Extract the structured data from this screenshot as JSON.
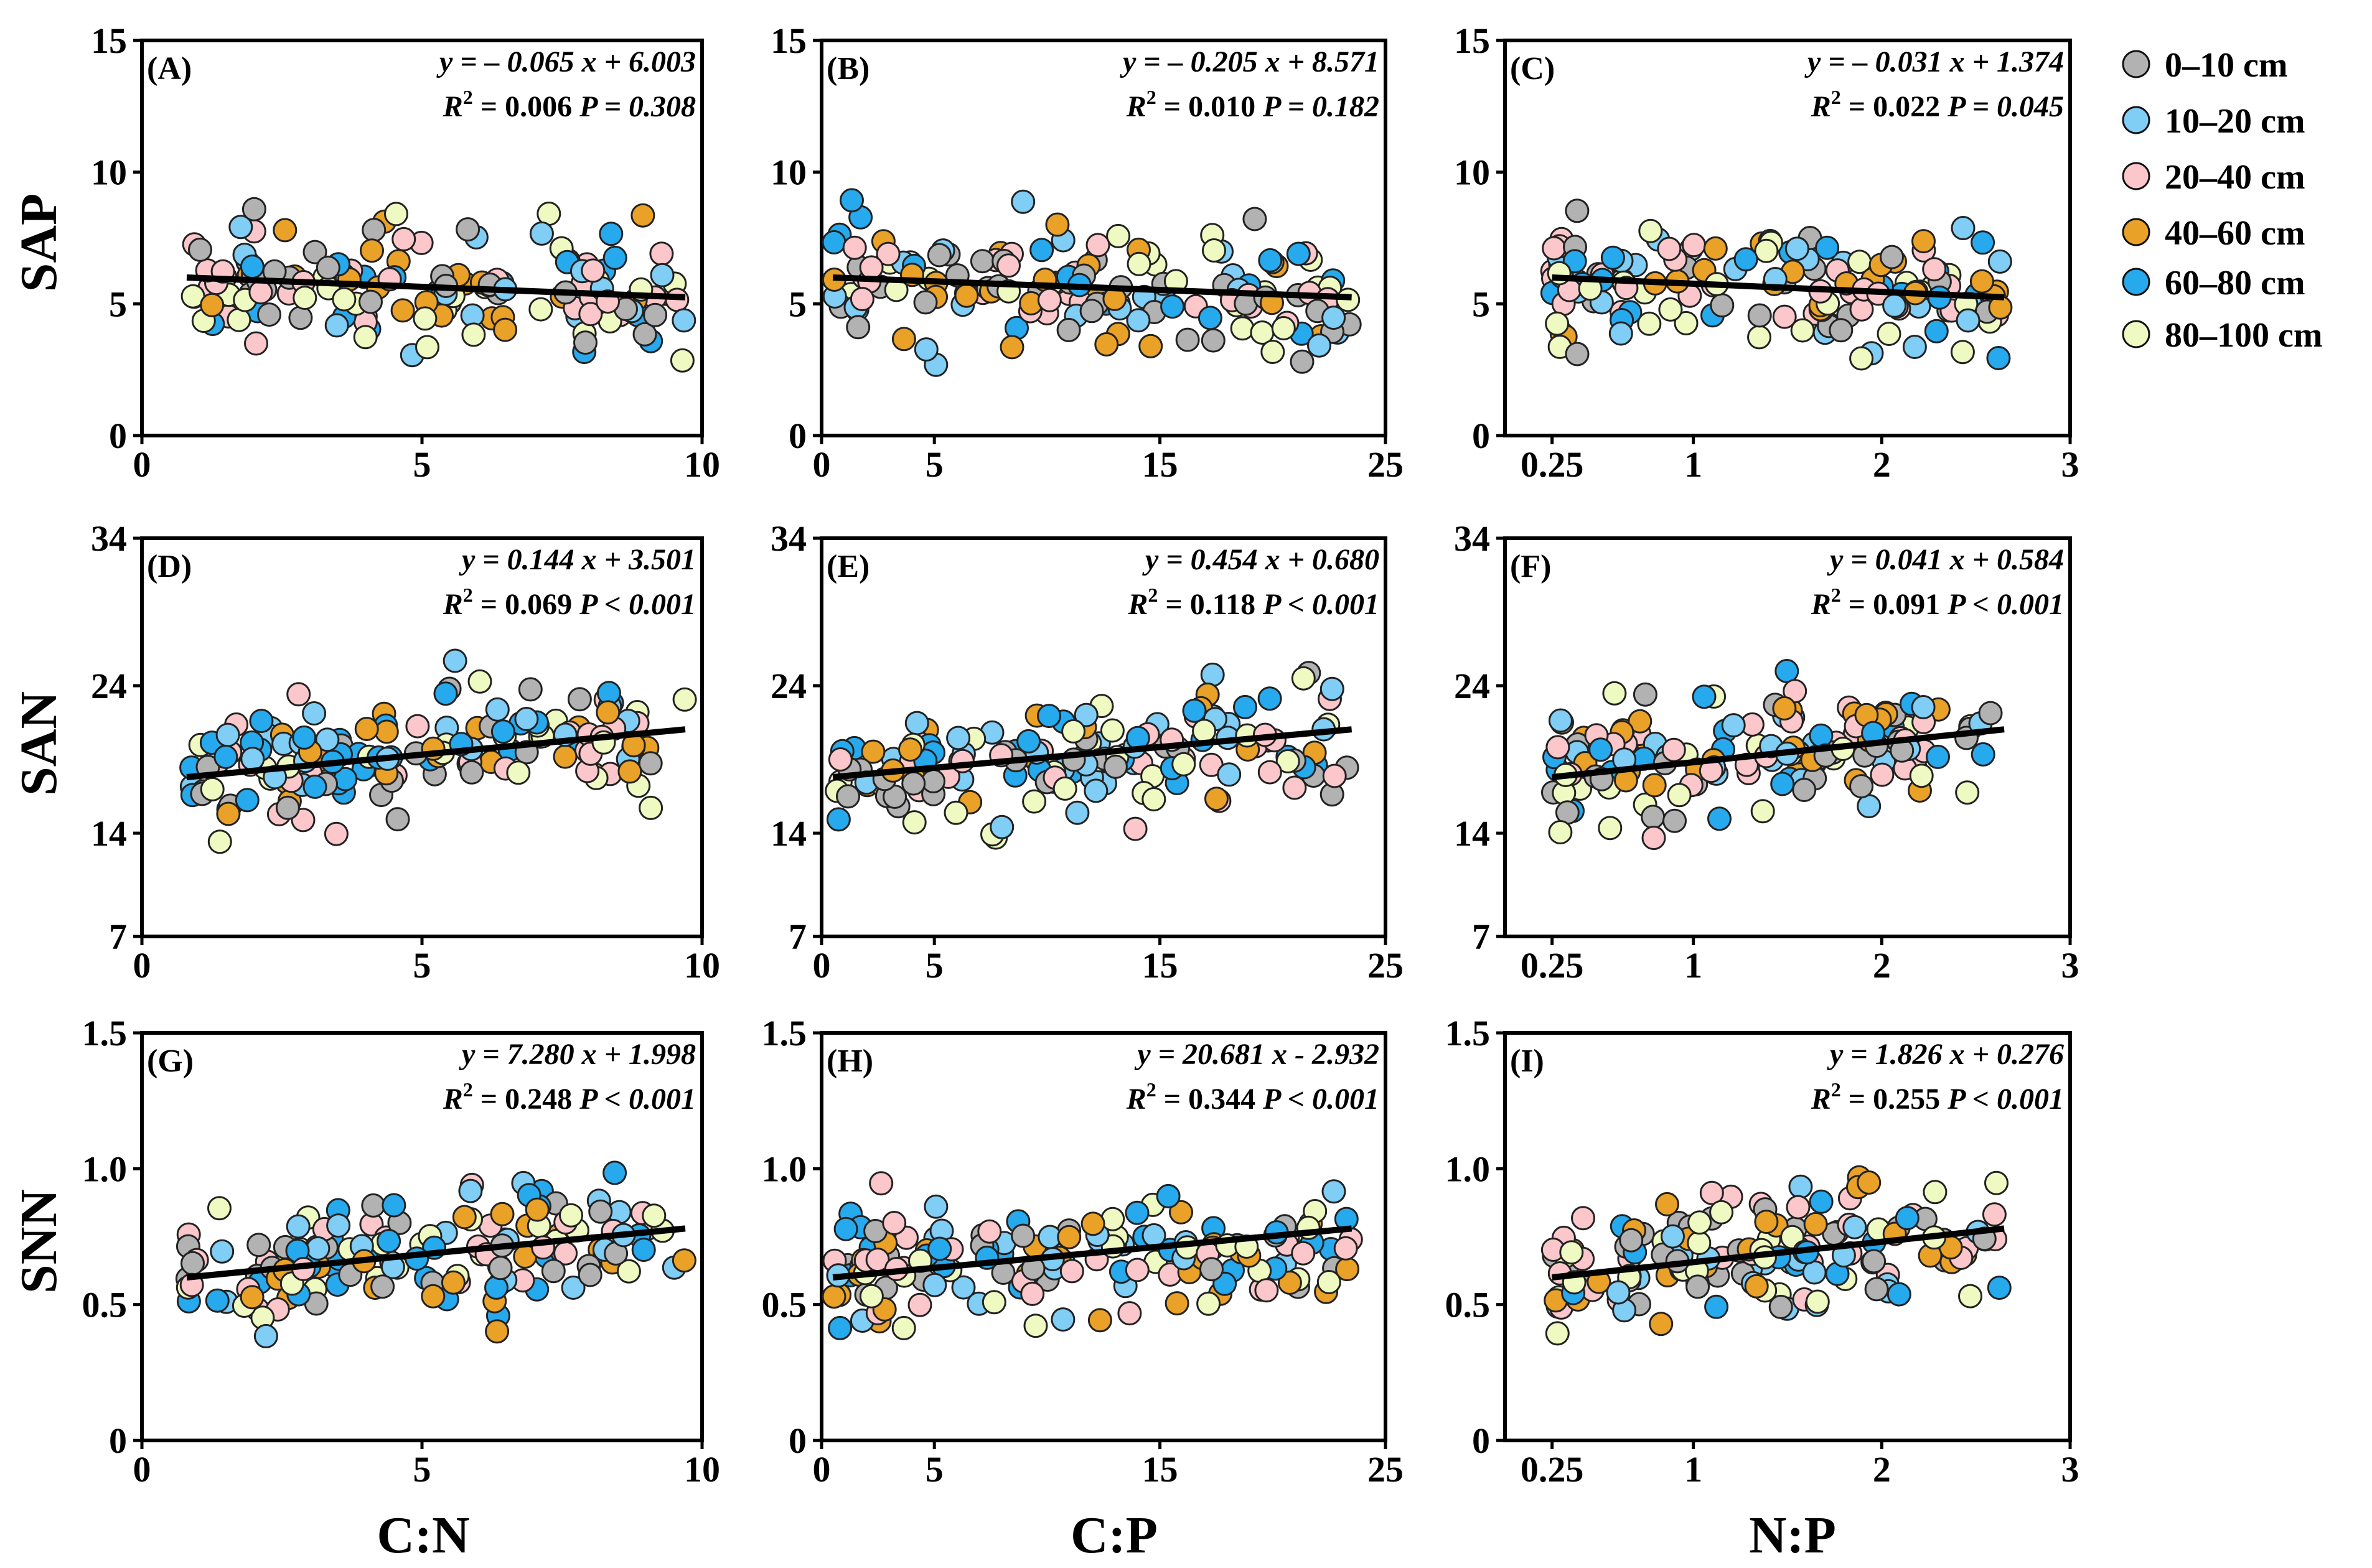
{
  "figure": {
    "row_labels": [
      "SAP",
      "SAN",
      "SNN"
    ],
    "col_labels": [
      "C:N",
      "C:P",
      "N:P"
    ]
  },
  "legend": {
    "items": [
      {
        "label": "0–10 cm",
        "color": "#b2b2b2"
      },
      {
        "label": "10–20 cm",
        "color": "#80cdf5"
      },
      {
        "label": "20–40 cm",
        "color": "#fbc7cb"
      },
      {
        "label": "40–60 cm",
        "color": "#e9a127"
      },
      {
        "label": "60–80 cm",
        "color": "#27a9ee"
      },
      {
        "label": "80–100 cm",
        "color": "#eefac1"
      }
    ]
  },
  "chart_data": [
    {
      "id": "A",
      "type": "scatter",
      "title": "(A)",
      "xlabel": "C:N",
      "ylabel": "SAP",
      "xlim": [
        0,
        10
      ],
      "ylim": [
        0,
        15
      ],
      "xticks": [
        "0",
        "5",
        "10"
      ],
      "yticks": [
        "0",
        "5",
        "10",
        "15"
      ],
      "equation": "y = – 0.065 x + 6.003",
      "stats": "R2 = 0.006 P = 0.308",
      "r2": "0.006",
      "p_text": "P = 0.308",
      "fit": {
        "slope": -0.065,
        "intercept": 6.003,
        "xrange": [
          0.8,
          9.7
        ]
      }
    },
    {
      "id": "B",
      "type": "scatter",
      "title": "(B)",
      "xlabel": "C:P",
      "ylabel": "SAP",
      "xlim": [
        0,
        25
      ],
      "ylim": [
        0,
        15
      ],
      "xticks": [
        "0",
        "5",
        "15",
        "25"
      ],
      "yticks": [
        "0",
        "5",
        "10",
        "15"
      ],
      "equation": "y = – 0.205 x + 8.571",
      "stats": "R2 = 0.010 P = 0.182",
      "r2": "0.010",
      "p_text": "P = 0.182",
      "fit": {
        "slope": -0.205,
        "intercept": 8.571,
        "xrange": [
          0.5,
          23.5
        ]
      }
    },
    {
      "id": "C",
      "type": "scatter",
      "title": "(C)",
      "xlabel": "N:P",
      "ylabel": "SAP",
      "xlim": [
        0,
        3
      ],
      "ylim": [
        0,
        15
      ],
      "xticks": [
        "0.25",
        "1",
        "2",
        "3"
      ],
      "yticks": [
        "0",
        "5",
        "10",
        "15"
      ],
      "equation": "y = – 0.031 x + 1.374",
      "stats": "R2 = 0.022 P = 0.045",
      "r2": "0.022",
      "p_text": "P = 0.045",
      "fit": {
        "slope": -0.031,
        "intercept": 1.374,
        "xrange": [
          0.25,
          2.65
        ]
      }
    },
    {
      "id": "D",
      "type": "scatter",
      "title": "(D)",
      "xlabel": "C:N",
      "ylabel": "SAN",
      "xlim": [
        0,
        10
      ],
      "ylim": [
        7,
        34
      ],
      "xticks": [
        "0",
        "5",
        "10"
      ],
      "yticks": [
        "7",
        "14",
        "24",
        "34"
      ],
      "equation": "y = 0.144 x + 3.501",
      "stats": "R2 = 0.069 P < 0.001",
      "r2": "0.069",
      "p_text": "P < 0.001",
      "fit": {
        "slope": 0.144,
        "intercept": 3.501,
        "xrange": [
          0.8,
          9.7
        ]
      }
    },
    {
      "id": "E",
      "type": "scatter",
      "title": "(E)",
      "xlabel": "C:P",
      "ylabel": "SAN",
      "xlim": [
        0,
        25
      ],
      "ylim": [
        7,
        34
      ],
      "xticks": [
        "0",
        "5",
        "15",
        "25"
      ],
      "yticks": [
        "7",
        "14",
        "24",
        "34"
      ],
      "equation": "y = 0.454 x + 0.680",
      "stats": "R2 = 0.118 P < 0.001",
      "r2": "0.118",
      "p_text": "P < 0.001",
      "fit": {
        "slope": 0.454,
        "intercept": 0.68,
        "xrange": [
          0.5,
          23.5
        ]
      }
    },
    {
      "id": "F",
      "type": "scatter",
      "title": "(F)",
      "xlabel": "N:P",
      "ylabel": "SAN",
      "xlim": [
        0,
        3
      ],
      "ylim": [
        7,
        34
      ],
      "xticks": [
        "0.25",
        "1",
        "2",
        "3"
      ],
      "yticks": [
        "7",
        "14",
        "24",
        "34"
      ],
      "equation": "y = 0.041 x + 0.584",
      "stats": "R2 = 0.091 P < 0.001",
      "r2": "0.091",
      "p_text": "P < 0.001",
      "fit": {
        "slope": 0.041,
        "intercept": 0.584,
        "xrange": [
          0.25,
          2.65
        ]
      }
    },
    {
      "id": "G",
      "type": "scatter",
      "title": "(G)",
      "xlabel": "C:N",
      "ylabel": "SNN",
      "xlim": [
        0,
        10
      ],
      "ylim": [
        0,
        1.5
      ],
      "xticks": [
        "0",
        "5",
        "10"
      ],
      "yticks": [
        "0",
        "0.5",
        "1.0",
        "1.5"
      ],
      "equation": "y = 7.280 x + 1.998",
      "stats": "R2 = 0.248 P < 0.001",
      "r2": "0.248",
      "p_text": "P < 0.001",
      "fit": {
        "slope": 7.28,
        "intercept": 1.998,
        "xrange": [
          0.8,
          9.7
        ]
      }
    },
    {
      "id": "H",
      "type": "scatter",
      "title": "(H)",
      "xlabel": "C:P",
      "ylabel": "SNN",
      "xlim": [
        0,
        25
      ],
      "ylim": [
        0,
        1.5
      ],
      "xticks": [
        "0",
        "5",
        "15",
        "25"
      ],
      "yticks": [
        "0",
        "0.5",
        "1.0",
        "1.5"
      ],
      "equation": "y = 20.681 x - 2.932",
      "stats": "R2 = 0.344 P < 0.001",
      "r2": "0.344",
      "p_text": "P < 0.001",
      "fit": {
        "slope": 20.681,
        "intercept": -2.932,
        "xrange": [
          0.5,
          23.5
        ]
      }
    },
    {
      "id": "I",
      "type": "scatter",
      "title": "(I)",
      "xlabel": "N:P",
      "ylabel": "SNN",
      "xlim": [
        0,
        3
      ],
      "ylim": [
        0,
        1.5
      ],
      "xticks": [
        "0.25",
        "1",
        "2",
        "3"
      ],
      "yticks": [
        "0",
        "0.5",
        "1.0",
        "1.5"
      ],
      "equation": "y = 1.826 x + 0.276",
      "stats": "R2 = 0.255 P < 0.001",
      "r2": "0.255",
      "p_text": "P < 0.001",
      "fit": {
        "slope": 1.826,
        "intercept": 0.276,
        "xrange": [
          0.25,
          2.65
        ]
      }
    }
  ]
}
